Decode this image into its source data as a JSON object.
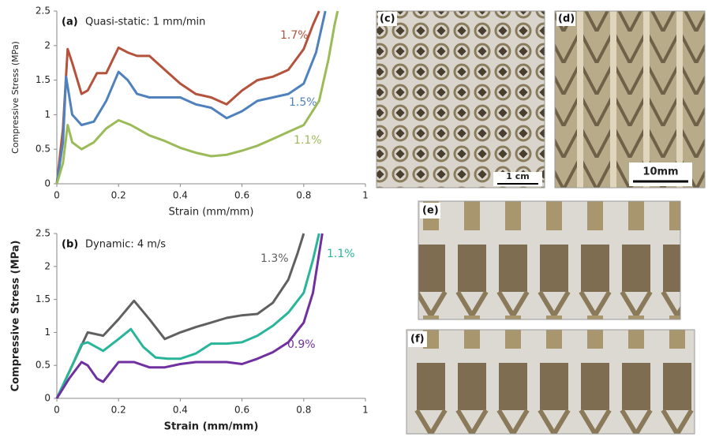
{
  "chart_data": [
    {
      "type": "line",
      "label": "(a)",
      "title": "Quasi-static: 1 mm/min",
      "xlabel": "Strain (mm/mm)",
      "ylabel": "Compressive Stress (MPa)",
      "xlim": [
        0,
        1
      ],
      "ylim": [
        0,
        2.5
      ],
      "xticks": [
        0,
        0.2,
        0.4,
        0.6,
        0.8,
        1
      ],
      "yticks": [
        0,
        0.5,
        1,
        1.5,
        2,
        2.5
      ],
      "series": [
        {
          "name": "1.7%",
          "color": "#b5523b",
          "x": [
            0,
            0.02,
            0.035,
            0.05,
            0.08,
            0.1,
            0.13,
            0.16,
            0.2,
            0.23,
            0.26,
            0.3,
            0.35,
            0.4,
            0.45,
            0.5,
            0.55,
            0.6,
            0.65,
            0.7,
            0.75,
            0.8,
            0.83,
            0.85
          ],
          "values": [
            0,
            0.8,
            1.95,
            1.75,
            1.3,
            1.35,
            1.6,
            1.6,
            1.97,
            1.9,
            1.85,
            1.85,
            1.65,
            1.45,
            1.3,
            1.25,
            1.15,
            1.35,
            1.5,
            1.55,
            1.65,
            1.95,
            2.3,
            2.5
          ]
        },
        {
          "name": "1.5%",
          "color": "#4f81bd",
          "x": [
            0,
            0.02,
            0.03,
            0.05,
            0.08,
            0.12,
            0.16,
            0.2,
            0.23,
            0.26,
            0.3,
            0.35,
            0.4,
            0.45,
            0.5,
            0.55,
            0.6,
            0.65,
            0.7,
            0.75,
            0.8,
            0.84,
            0.87
          ],
          "values": [
            0,
            0.6,
            1.55,
            1.0,
            0.85,
            0.9,
            1.2,
            1.62,
            1.5,
            1.3,
            1.25,
            1.25,
            1.25,
            1.15,
            1.1,
            0.95,
            1.05,
            1.2,
            1.25,
            1.3,
            1.45,
            1.9,
            2.5
          ]
        },
        {
          "name": "1.1%",
          "color": "#9bbb59",
          "x": [
            0,
            0.02,
            0.035,
            0.05,
            0.08,
            0.12,
            0.16,
            0.2,
            0.24,
            0.3,
            0.35,
            0.4,
            0.45,
            0.5,
            0.55,
            0.6,
            0.65,
            0.7,
            0.75,
            0.8,
            0.85,
            0.88,
            0.9,
            0.91
          ],
          "values": [
            0,
            0.3,
            0.85,
            0.6,
            0.5,
            0.6,
            0.8,
            0.92,
            0.85,
            0.7,
            0.62,
            0.52,
            0.45,
            0.4,
            0.42,
            0.48,
            0.55,
            0.65,
            0.75,
            0.85,
            1.2,
            1.8,
            2.3,
            2.5
          ]
        }
      ]
    },
    {
      "type": "line",
      "label": "(b)",
      "title": "Dynamic: 4 m/s",
      "xlabel": "Strain (mm/mm)",
      "ylabel": "Compressive Stress (MPa)",
      "xlim": [
        0,
        1
      ],
      "ylim": [
        0,
        2.5
      ],
      "xticks": [
        0,
        0.2,
        0.4,
        0.6,
        0.8,
        1
      ],
      "yticks": [
        0,
        0.5,
        1,
        1.5,
        2,
        2.5
      ],
      "series": [
        {
          "name": "1.3%",
          "color": "#606060",
          "x": [
            0,
            0.05,
            0.1,
            0.15,
            0.2,
            0.25,
            0.3,
            0.35,
            0.4,
            0.45,
            0.5,
            0.55,
            0.6,
            0.65,
            0.7,
            0.75,
            0.78,
            0.8
          ],
          "values": [
            0,
            0.5,
            1.0,
            0.95,
            1.2,
            1.48,
            1.2,
            0.9,
            1.0,
            1.08,
            1.15,
            1.22,
            1.26,
            1.28,
            1.45,
            1.8,
            2.2,
            2.5
          ]
        },
        {
          "name": "1.1%",
          "color": "#2ab59a",
          "x": [
            0,
            0.05,
            0.08,
            0.1,
            0.15,
            0.2,
            0.24,
            0.28,
            0.32,
            0.36,
            0.4,
            0.45,
            0.5,
            0.55,
            0.6,
            0.65,
            0.7,
            0.75,
            0.8,
            0.83,
            0.85
          ],
          "values": [
            0,
            0.5,
            0.82,
            0.85,
            0.72,
            0.9,
            1.05,
            0.78,
            0.62,
            0.6,
            0.6,
            0.68,
            0.83,
            0.83,
            0.85,
            0.95,
            1.1,
            1.3,
            1.6,
            2.1,
            2.5
          ]
        },
        {
          "name": "0.9%",
          "color": "#7030a0",
          "x": [
            0,
            0.04,
            0.08,
            0.1,
            0.13,
            0.15,
            0.2,
            0.25,
            0.3,
            0.35,
            0.4,
            0.45,
            0.5,
            0.55,
            0.6,
            0.65,
            0.7,
            0.75,
            0.8,
            0.83,
            0.86
          ],
          "values": [
            0,
            0.3,
            0.55,
            0.5,
            0.3,
            0.25,
            0.55,
            0.55,
            0.47,
            0.47,
            0.52,
            0.55,
            0.55,
            0.55,
            0.52,
            0.6,
            0.7,
            0.85,
            1.15,
            1.6,
            2.5
          ]
        }
      ]
    }
  ],
  "photos": [
    {
      "label": "(c)",
      "scale": "1 cm"
    },
    {
      "label": "(d)",
      "scale": "10mm"
    },
    {
      "label": "(e)"
    },
    {
      "label": "(f)"
    }
  ]
}
